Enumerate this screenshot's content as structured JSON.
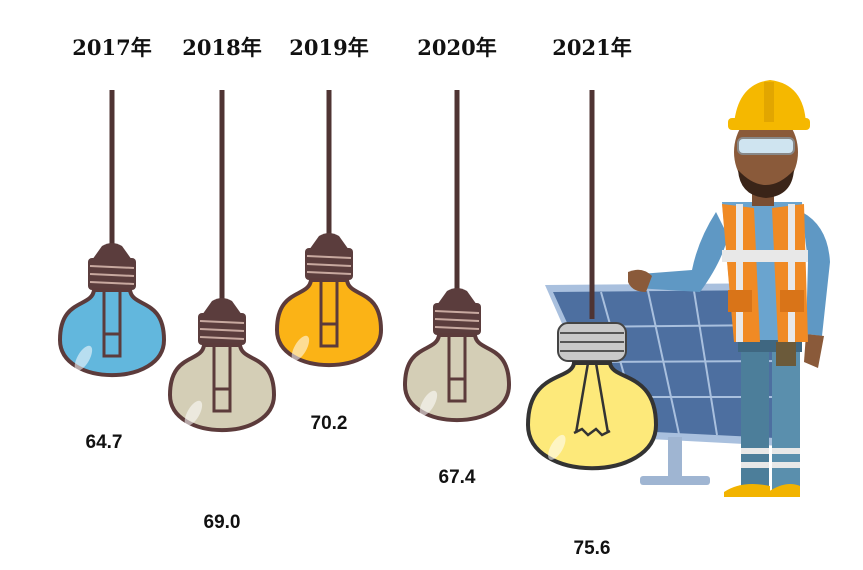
{
  "chart_data": {
    "type": "bar",
    "title": "",
    "xlabel": "",
    "ylabel": "",
    "categories": [
      "2017年",
      "2018年",
      "2019年",
      "2020年",
      "2021年"
    ],
    "values": [
      64.7,
      69.0,
      70.2,
      67.4,
      75.6
    ],
    "value_labels": [
      "64.7",
      "69.0",
      "70.2",
      "67.4",
      "75.6"
    ],
    "colors": [
      "#62b7dd",
      "#d4ceb6",
      "#fbb316",
      "#d4ceb6",
      "#fde97a"
    ],
    "encoding": "bulb hanging height",
    "ylim": [
      62,
      78
    ],
    "grid": false,
    "legend": "none"
  },
  "palette": {
    "cord": "#4f3433",
    "socket": "#5b3d3d",
    "outline": "#5c3b3b",
    "panel": "#4d6fa0",
    "panel_frame": "#a9c0de"
  },
  "illustration": {
    "figure": "engineer-with-solar-panel",
    "icon": "hard-hat-worker-icon"
  }
}
